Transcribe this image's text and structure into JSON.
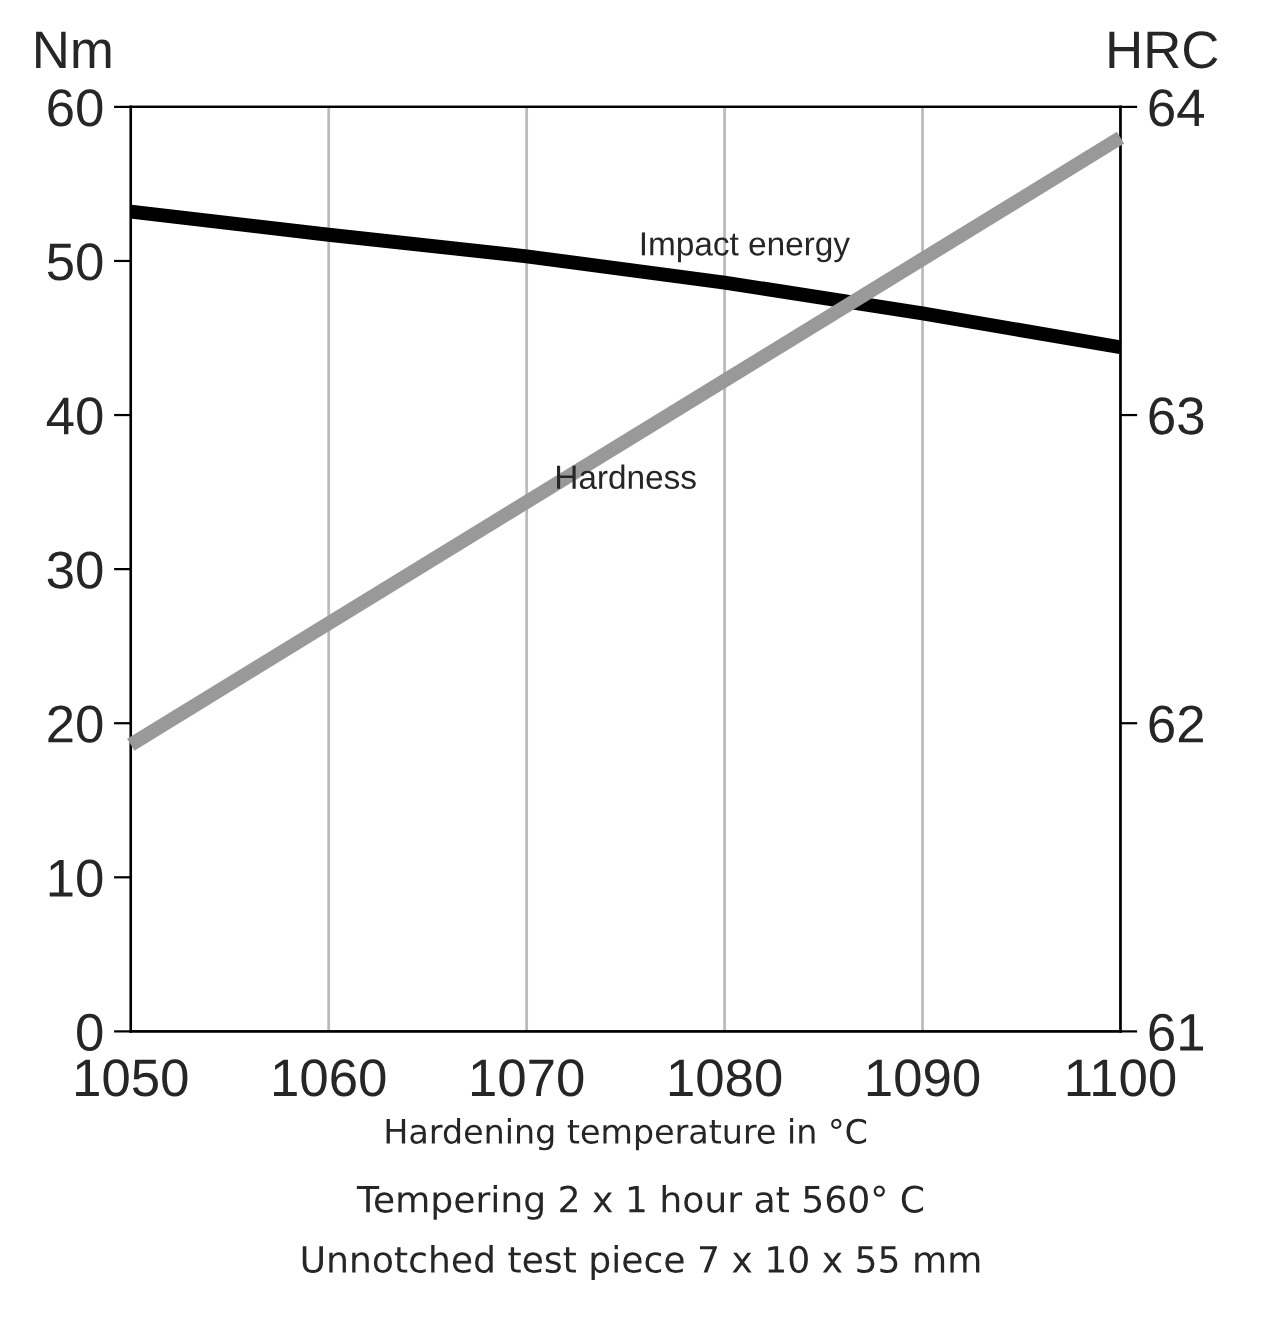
{
  "chart_data": {
    "type": "line",
    "x": [
      1050,
      1060,
      1070,
      1080,
      1090,
      1100
    ],
    "series": [
      {
        "name": "Impact energy",
        "color": "#000000",
        "values": [
          53.2,
          51.7,
          50.3,
          48.6,
          46.6,
          44.4
        ]
      },
      {
        "name": "Hardness",
        "color": "#999999",
        "axis": "y2",
        "x": [
          1050,
          1100
        ],
        "values": [
          61.93,
          63.9
        ]
      }
    ],
    "xlabel": "Hardening temperature in °C",
    "ylabel": "Nm",
    "y2label": "HRC",
    "xlim": [
      1050,
      1100
    ],
    "xticks": [
      1050,
      1060,
      1070,
      1080,
      1090,
      1100
    ],
    "ylim": [
      0,
      60
    ],
    "yticks": [
      0,
      10,
      20,
      30,
      40,
      50,
      60
    ],
    "y2lim": [
      61,
      64
    ],
    "y2ticks": [
      61,
      62,
      63,
      64
    ],
    "grid": "x",
    "legend": false,
    "marker": "none",
    "line_style": "solid",
    "annotations": [
      "Tempering 2 x 1 hour at 560° C",
      "Unnotched test piece 7 x 10 x 55 mm"
    ]
  }
}
